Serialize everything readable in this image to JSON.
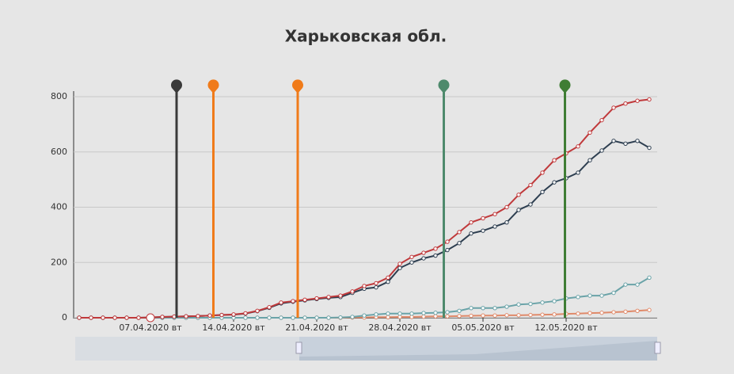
{
  "chart_data": {
    "type": "line",
    "title": "Харьковская обл.",
    "categories": [
      null,
      null,
      null,
      null,
      null,
      null,
      "07.04.2020 вт",
      null,
      null,
      null,
      null,
      null,
      null,
      "14.04.2020 вт",
      null,
      null,
      null,
      null,
      null,
      null,
      "21.04.2020 вт",
      null,
      null,
      null,
      null,
      null,
      null,
      "28.04.2020 вт",
      null,
      null,
      null,
      null,
      null,
      null,
      "05.05.2020 вт",
      null,
      null,
      null,
      null,
      null,
      null,
      "12.05.2020 вт",
      null,
      null,
      null,
      null,
      null,
      null,
      null
    ],
    "series": [
      {
        "color": "#c0393b",
        "values": [
          0,
          0,
          0,
          0,
          0,
          0,
          1,
          3,
          4,
          5,
          6,
          8,
          10,
          12,
          16,
          25,
          38,
          55,
          60,
          65,
          70,
          75,
          80,
          95,
          115,
          125,
          145,
          195,
          220,
          235,
          250,
          275,
          310,
          345,
          360,
          375,
          400,
          445,
          480,
          525,
          570,
          595,
          620,
          670,
          715,
          760,
          775,
          785,
          790
        ]
      },
      {
        "color": "#2d3e50",
        "values": [
          0,
          0,
          0,
          0,
          0,
          0,
          1,
          3,
          4,
          5,
          6,
          8,
          10,
          11,
          15,
          24,
          36,
          52,
          58,
          63,
          68,
          72,
          75,
          90,
          105,
          110,
          130,
          180,
          200,
          215,
          225,
          245,
          270,
          305,
          315,
          330,
          345,
          390,
          410,
          455,
          490,
          505,
          525,
          570,
          605,
          640,
          630,
          640,
          615
        ]
      },
      {
        "color": "#6aa3a8",
        "values": [
          0,
          0,
          0,
          0,
          0,
          0,
          0,
          0,
          0,
          0,
          0,
          0,
          0,
          0,
          0,
          0,
          0,
          0,
          0,
          0,
          0,
          0,
          1,
          3,
          8,
          12,
          15,
          15,
          15,
          17,
          18,
          20,
          25,
          35,
          35,
          35,
          40,
          48,
          50,
          55,
          60,
          70,
          75,
          80,
          80,
          90,
          120,
          120,
          145
        ]
      },
      {
        "color": "#e08a6a",
        "values": [
          0,
          0,
          0,
          0,
          0,
          0,
          0,
          0,
          0,
          0,
          0,
          0,
          0,
          0,
          0,
          0,
          0,
          0,
          0,
          0,
          0,
          0,
          0,
          1,
          1,
          2,
          2,
          3,
          3,
          4,
          5,
          5,
          6,
          7,
          8,
          8,
          9,
          9,
          10,
          11,
          12,
          14,
          15,
          17,
          18,
          20,
          22,
          25,
          28
        ]
      }
    ],
    "events": [
      {
        "at": 8.2,
        "color": "#3a3a3a"
      },
      {
        "at": 11.3,
        "color": "#f07b1a"
      },
      {
        "at": 18.4,
        "color": "#f07b1a"
      },
      {
        "at": 30.7,
        "color": "#4e8a6c"
      },
      {
        "at": 40.9,
        "color": "#3f7d34"
      }
    ],
    "ylim": [
      0,
      800
    ],
    "yticks": [
      0,
      200,
      400,
      600,
      800
    ],
    "grid": true
  }
}
